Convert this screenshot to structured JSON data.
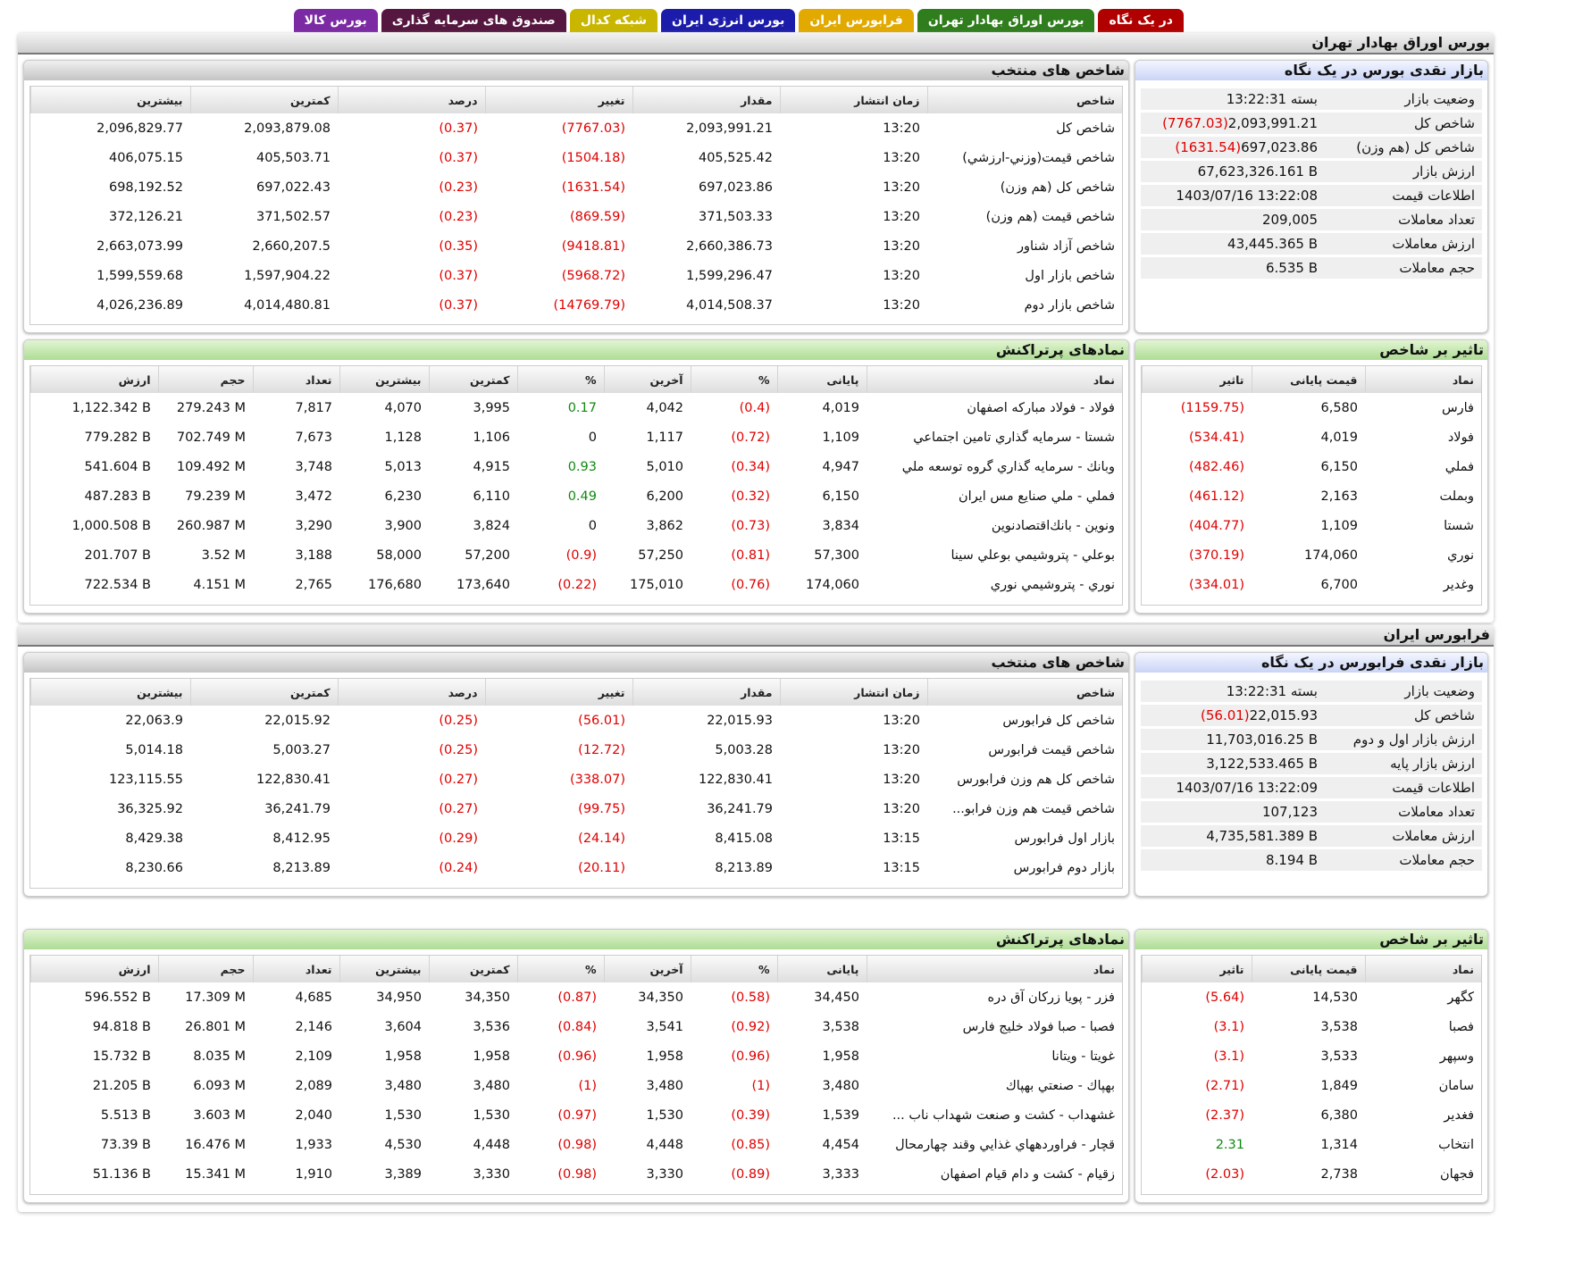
{
  "tabs": [
    "در یک نگاه",
    "بورس اوراق بهادار تهران",
    "فرابورس ایران",
    "بورس انرژی ایران",
    "شبکه کدال",
    "صندوق های سرمایه گذاری",
    "بورس کالا"
  ],
  "markets": [
    {
      "title": "بورس اوراق بهادار تهران",
      "overview": {
        "title": "بازار نقدی بورس در یک نگاه",
        "rows": [
          [
            "وضعیت بازار",
            "بسته 13:22:31"
          ],
          [
            "شاخص کل",
            "2,093,991.21",
            "(7767.03)"
          ],
          [
            "شاخص کل (هم وزن)",
            "697,023.86",
            "(1631.54)"
          ],
          [
            "ارزش بازار",
            "67,623,326.161 B"
          ],
          [
            "اطلاعات قیمت",
            "1403/07/16 13:22:08"
          ],
          [
            "تعداد معاملات",
            "209,005"
          ],
          [
            "ارزش معاملات",
            "43,445.365 B"
          ],
          [
            "حجم معاملات",
            "6.535 B"
          ]
        ]
      },
      "indices": {
        "title": "شاخص های منتخب",
        "headers": [
          "شاخص",
          "زمان انتشار",
          "مقدار",
          "تغییر",
          "درصد",
          "کمترین",
          "بیشترین"
        ],
        "rows": [
          [
            "شاخص کل",
            "13:20",
            "2,093,991.21",
            "(7767.03)",
            "(0.37)",
            "2,093,879.08",
            "2,096,829.77"
          ],
          [
            "شاخص قيمت(وزني-ارزشي)",
            "13:20",
            "405,525.42",
            "(1504.18)",
            "(0.37)",
            "405,503.71",
            "406,075.15"
          ],
          [
            "شاخص کل (هم وزن)",
            "13:20",
            "697,023.86",
            "(1631.54)",
            "(0.23)",
            "697,022.43",
            "698,192.52"
          ],
          [
            "شاخص قيمت (هم وزن)",
            "13:20",
            "371,503.33",
            "(869.59)",
            "(0.23)",
            "371,502.57",
            "372,126.21"
          ],
          [
            "شاخص آزاد شناور",
            "13:20",
            "2,660,386.73",
            "(9418.81)",
            "(0.35)",
            "2,660,207.5",
            "2,663,073.99"
          ],
          [
            "شاخص بازار اول",
            "13:20",
            "1,599,296.47",
            "(5968.72)",
            "(0.37)",
            "1,597,904.22",
            "1,599,559.68"
          ],
          [
            "شاخص بازار دوم",
            "13:20",
            "4,014,508.37",
            "(14769.79)",
            "(0.37)",
            "4,014,480.81",
            "4,026,236.89"
          ]
        ]
      },
      "impact": {
        "title": "تاثیر بر شاخص",
        "headers": [
          "نماد",
          "قیمت پایانی",
          "تاثیر"
        ],
        "rows": [
          [
            "فارس",
            "6,580",
            "(1159.75)"
          ],
          [
            "فولاد",
            "4,019",
            "(534.41)"
          ],
          [
            "فملي",
            "6,150",
            "(482.46)"
          ],
          [
            "وبملت",
            "2,163",
            "(461.12)"
          ],
          [
            "شستا",
            "1,109",
            "(404.77)"
          ],
          [
            "نوري",
            "174,060",
            "(370.19)"
          ],
          [
            "وغدير",
            "6,700",
            "(334.01)"
          ]
        ]
      },
      "active": {
        "title": "نمادهای پرتراکنش",
        "headers": [
          "نماد",
          "پایانی",
          "%",
          "آخرین",
          "%",
          "کمترین",
          "بیشترین",
          "تعداد",
          "حجم",
          "ارزش"
        ],
        "rows": [
          [
            "فولاد - فولاد مبارکه اصفهان",
            "4,019",
            "(0.4)",
            "4,042",
            "0.17",
            "3,995",
            "4,070",
            "7,817",
            "279.243 M",
            "1,122.342 B"
          ],
          [
            "شستا - سرمایه گذاري تامين اجتماعي",
            "1,109",
            "(0.72)",
            "1,117",
            "0",
            "1,106",
            "1,128",
            "7,673",
            "702.749 M",
            "779.282 B"
          ],
          [
            "وبانك - سرمايه گذاري گروه توسعه ملي",
            "4,947",
            "(0.34)",
            "5,010",
            "0.93",
            "4,915",
            "5,013",
            "3,748",
            "109.492 M",
            "541.604 B"
          ],
          [
            "فملي - ملي صنايع مس ايران",
            "6,150",
            "(0.32)",
            "6,200",
            "0.49",
            "6,110",
            "6,230",
            "3,472",
            "79.239 M",
            "487.283 B"
          ],
          [
            "ونوين - بانك‌اقتصادنوين",
            "3,834",
            "(0.73)",
            "3,862",
            "0",
            "3,824",
            "3,900",
            "3,290",
            "260.987 M",
            "1,000.508 B"
          ],
          [
            "بوعلي - پتروشيمي بوعلي سينا",
            "57,300",
            "(0.81)",
            "57,250",
            "(0.9)",
            "57,200",
            "58,000",
            "3,188",
            "3.52 M",
            "201.707 B"
          ],
          [
            "نوري - پتروشيمي نوري",
            "174,060",
            "(0.76)",
            "175,010",
            "(0.22)",
            "173,640",
            "176,680",
            "2,765",
            "4.151 M",
            "722.534 B"
          ]
        ]
      }
    },
    {
      "title": "فرابورس ایران",
      "overview": {
        "title": "بازار نقدی فرابورس در یک نگاه",
        "rows": [
          [
            "وضعیت بازار",
            "بسته 13:22:31"
          ],
          [
            "شاخص کل",
            "22,015.93",
            "(56.01)"
          ],
          [
            "ارزش بازار اول و دوم",
            "11,703,016.25 B"
          ],
          [
            "ارزش بازار پایه",
            "3,122,533.465 B"
          ],
          [
            "اطلاعات قیمت",
            "1403/07/16 13:22:09"
          ],
          [
            "تعداد معاملات",
            "107,123"
          ],
          [
            "ارزش معاملات",
            "4,735,581.389 B"
          ],
          [
            "حجم معاملات",
            "8.194 B"
          ]
        ]
      },
      "indices": {
        "title": "شاخص های منتخب",
        "headers": [
          "شاخص",
          "زمان انتشار",
          "مقدار",
          "تغییر",
          "درصد",
          "کمترین",
          "بیشترین"
        ],
        "rows": [
          [
            "شاخص کل فرابورس",
            "13:20",
            "22,015.93",
            "(56.01)",
            "(0.25)",
            "22,015.92",
            "22,063.9"
          ],
          [
            "شاخص قیمت فرابورس",
            "13:20",
            "5,003.28",
            "(12.72)",
            "(0.25)",
            "5,003.27",
            "5,014.18"
          ],
          [
            "شاخص کل هم وزن فرابورس",
            "13:20",
            "122,830.41",
            "(338.07)",
            "(0.27)",
            "122,830.41",
            "123,115.55"
          ],
          [
            "شاخص قیمت هم وزن فرابو...",
            "13:20",
            "36,241.79",
            "(99.75)",
            "(0.27)",
            "36,241.79",
            "36,325.92"
          ],
          [
            "بازار اول فرابورس",
            "13:15",
            "8,415.08",
            "(24.14)",
            "(0.29)",
            "8,412.95",
            "8,429.38"
          ],
          [
            "بازار دوم فرابورس",
            "13:15",
            "8,213.89",
            "(20.11)",
            "(0.24)",
            "8,213.89",
            "8,230.66"
          ]
        ]
      },
      "impact": {
        "title": "تاثیر بر شاخص",
        "headers": [
          "نماد",
          "قیمت پایانی",
          "تاثیر"
        ],
        "rows": [
          [
            "کگهر",
            "14,530",
            "(5.64)"
          ],
          [
            "فصبا",
            "3,538",
            "(3.1)"
          ],
          [
            "وسپهر",
            "3,533",
            "(3.1)"
          ],
          [
            "سامان",
            "1,849",
            "(2.71)"
          ],
          [
            "فغدير",
            "6,380",
            "(2.37)"
          ],
          [
            "انتخاب",
            "1,314",
            "2.31"
          ],
          [
            "فجهان",
            "2,738",
            "(2.03)"
          ]
        ]
      },
      "active": {
        "title": "نمادهای پرتراکنش",
        "headers": [
          "نماد",
          "پایانی",
          "%",
          "آخرین",
          "%",
          "کمترین",
          "بیشترین",
          "تعداد",
          "حجم",
          "ارزش"
        ],
        "rows": [
          [
            "فزر - پويا زركان آق دره",
            "34,450",
            "(0.58)",
            "34,350",
            "(0.87)",
            "34,350",
            "34,950",
            "4,685",
            "17.309 M",
            "596.552 B"
          ],
          [
            "فصبا - صبا فولاد خليج فارس",
            "3,538",
            "(0.92)",
            "3,541",
            "(0.84)",
            "3,536",
            "3,604",
            "2,146",
            "26.801 M",
            "94.818 B"
          ],
          [
            "غويتا - ويتانا",
            "1,958",
            "(0.96)",
            "1,958",
            "(0.96)",
            "1,958",
            "1,958",
            "2,109",
            "8.035 M",
            "15.732 B"
          ],
          [
            "بهپاك - صنعتي بهپاك",
            "3,480",
            "(1)",
            "3,480",
            "(1)",
            "3,480",
            "3,480",
            "2,089",
            "6.093 M",
            "21.205 B"
          ],
          [
            "غشهداب - کشت و صنعت شهداب ناب ...",
            "1,539",
            "(0.39)",
            "1,530",
            "(0.97)",
            "1,530",
            "1,530",
            "2,040",
            "3.603 M",
            "5.513 B"
          ],
          [
            "قچار - فراوردههاي غذايي وقند چهارمحال",
            "4,454",
            "(0.85)",
            "4,448",
            "(0.98)",
            "4,448",
            "4,530",
            "1,933",
            "16.476 M",
            "73.39 B"
          ],
          [
            "زقيام - کشت و دام قيام اصفهان",
            "3,333",
            "(0.89)",
            "3,330",
            "(0.98)",
            "3,330",
            "3,389",
            "1,910",
            "15.341 M",
            "51.136 B"
          ]
        ]
      }
    }
  ]
}
